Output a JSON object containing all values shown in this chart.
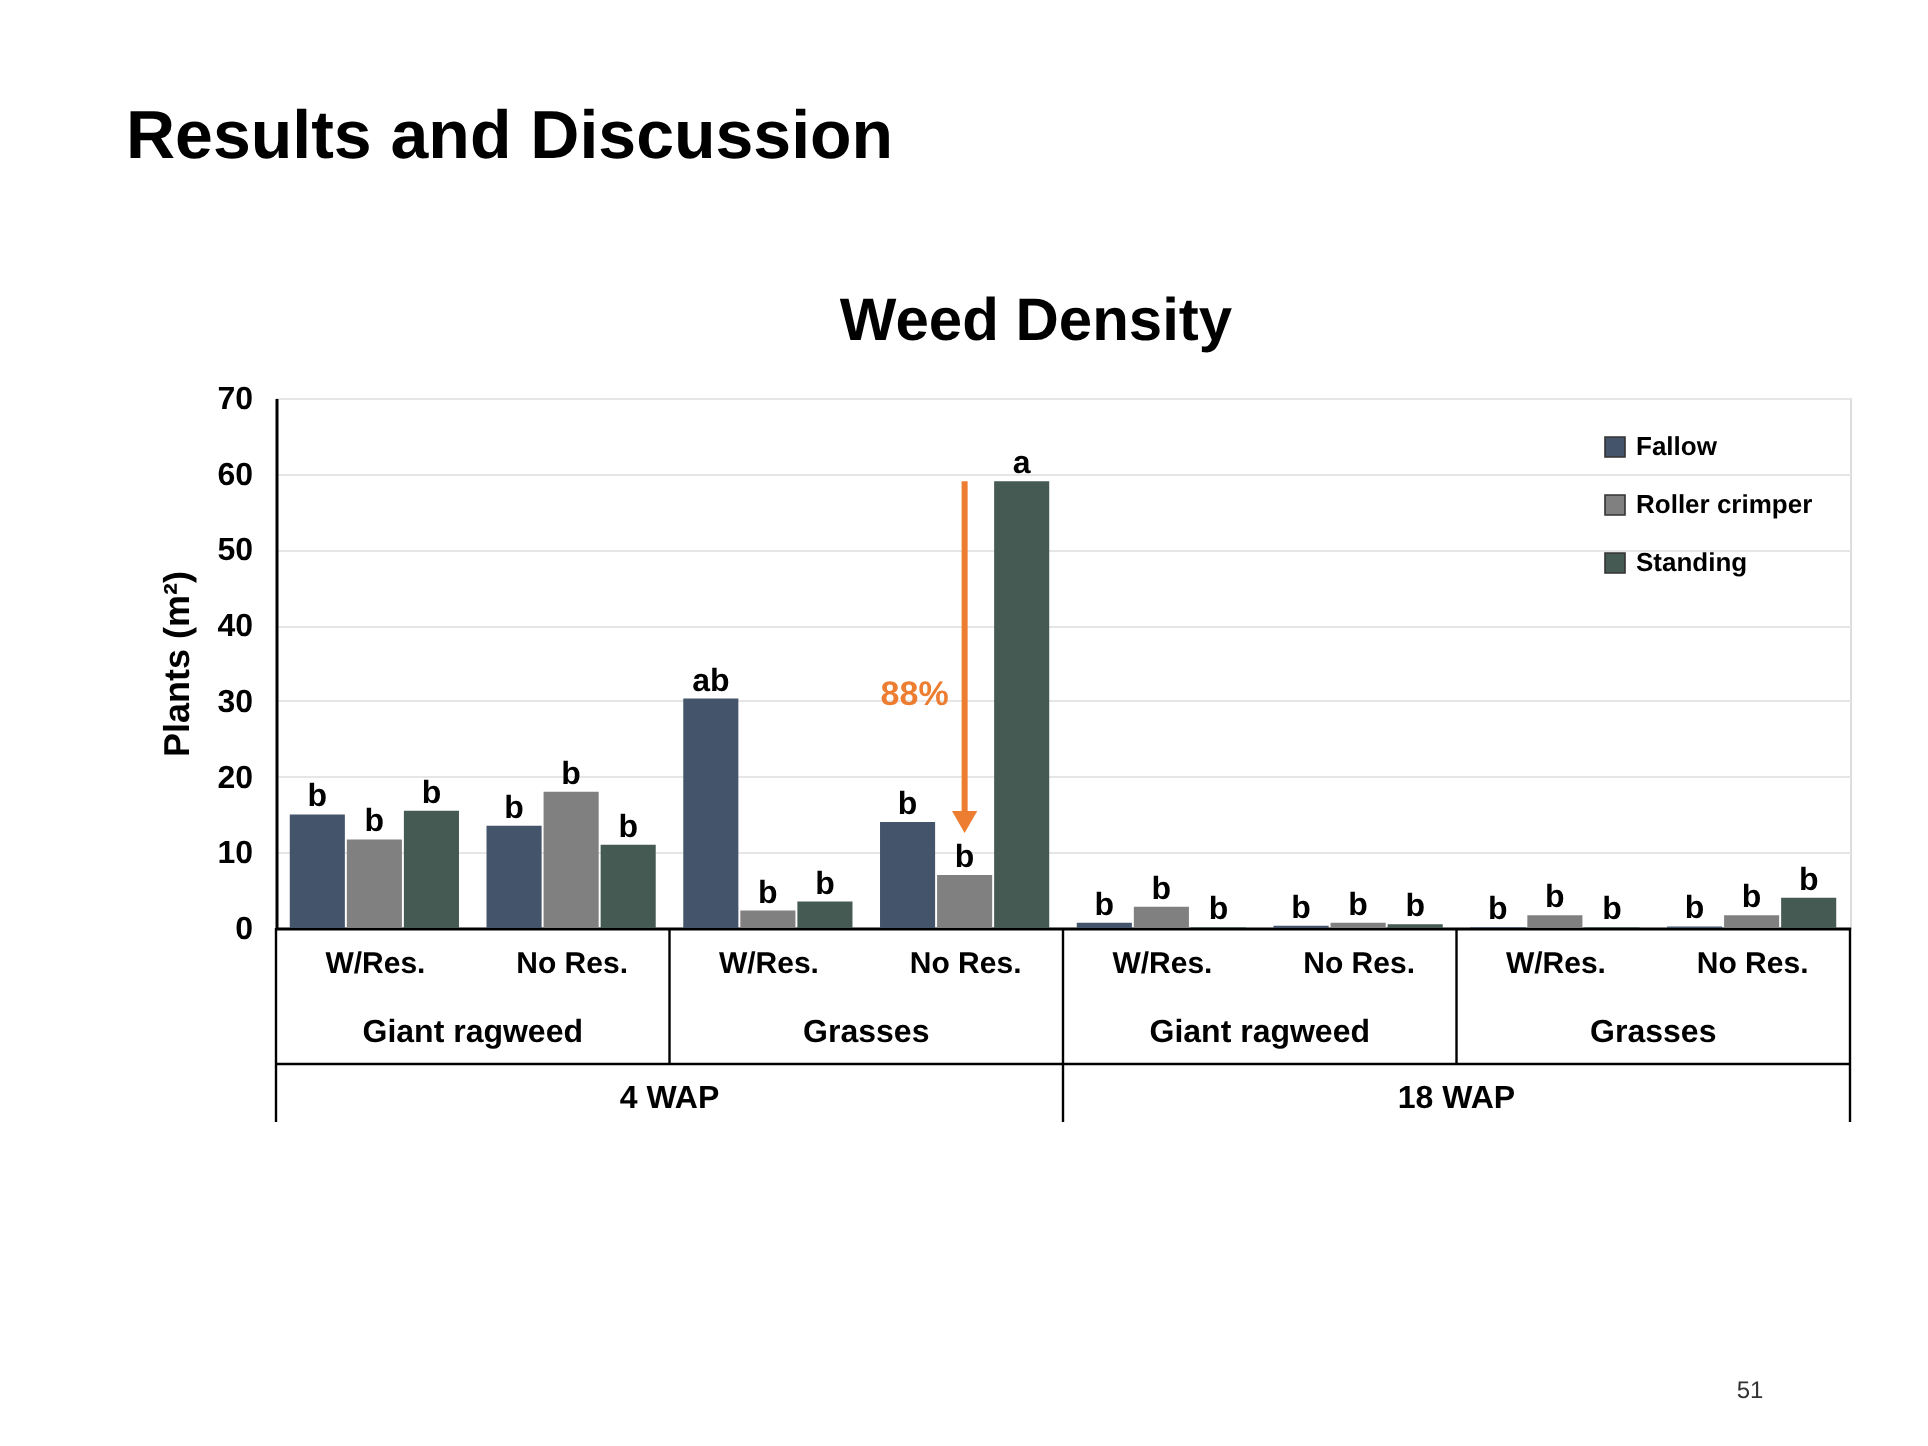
{
  "chart_data": {
    "type": "bar",
    "title": "Results and Discussion",
    "subtitle": "Weed Density",
    "ylabel": "Plants (m²)",
    "categories": [
      "W/Res.",
      "No Res.",
      "W/Res.",
      "No Res.",
      "W/Res.",
      "No Res.",
      "W/Res.",
      "No Res."
    ],
    "series": [
      {
        "name": "Fallow",
        "color": "#44546a",
        "values": [
          15,
          13.5,
          30.3,
          14,
          0.7,
          0.3,
          0.1,
          0.2
        ],
        "value_labels": [
          "b",
          "b",
          "ab",
          "b",
          "b",
          "b",
          "b",
          "b"
        ]
      },
      {
        "name": "Roller crimper",
        "color": "#808080",
        "values": [
          11.7,
          18,
          2.3,
          7,
          2.8,
          0.7,
          1.7,
          1.7
        ],
        "value_labels": [
          "b",
          "b",
          "b",
          "b",
          "b",
          "b",
          "b",
          "b"
        ]
      },
      {
        "name": "Standing",
        "color": "#455a52",
        "values": [
          15.5,
          11,
          3.5,
          59,
          0.1,
          0.5,
          0.1,
          4
        ],
        "value_labels": [
          "b",
          "b",
          "b",
          "a",
          "b",
          "b",
          "b",
          "b"
        ]
      }
    ],
    "ylim": [
      0,
      70
    ],
    "yticks": [
      0,
      10,
      20,
      30,
      40,
      50,
      60,
      70
    ],
    "grid": "y",
    "legend": "top right",
    "annotations": [
      "Giant ragweed",
      "Grasses",
      "Giant ragweed",
      "Grasses",
      "4 WAP",
      "18 WAP",
      "88%",
      "51"
    ]
  }
}
